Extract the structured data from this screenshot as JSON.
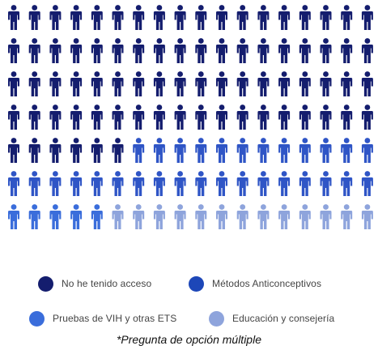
{
  "chart_data": {
    "type": "pictogram",
    "title": "",
    "total_icons": 126,
    "rows": 7,
    "icons_per_row": 18,
    "series": [
      {
        "name": "No he tenido acceso",
        "value": 77,
        "color": "#141d6e"
      },
      {
        "name": "Métodos Anticonceptivos",
        "value": 49,
        "color": "#1d47b8"
      }
    ],
    "overlay_last_row": [
      {
        "name": "Pruebas de VIH y otras ETS",
        "count": 5,
        "color": "#3a6ddb"
      },
      {
        "name": "Educación y consejería",
        "count": 13,
        "color": "#8ea4dc"
      }
    ],
    "row_colors": [
      [
        "#141d6e"
      ],
      [
        "#141d6e"
      ],
      [
        "#141d6e"
      ],
      [
        "#141d6e"
      ],
      [
        "#141d6e",
        "#2f55c6"
      ],
      [
        "#2f55c6"
      ],
      [
        "#3a6ddb",
        "#8ea4dc"
      ]
    ],
    "row_splits": [
      18,
      18,
      18,
      18,
      6,
      18,
      5
    ]
  },
  "legend": {
    "items": [
      {
        "label": "No he tenido acceso",
        "color": "#141d6e"
      },
      {
        "label": "Métodos Anticonceptivos",
        "color": "#1d47b8"
      },
      {
        "label": "Pruebas de VIH y otras ETS",
        "color": "#3a6ddb"
      },
      {
        "label": "Educación y consejería",
        "color": "#8ea4dc"
      }
    ]
  },
  "footnote": "*Pregunta de opción múltiple"
}
